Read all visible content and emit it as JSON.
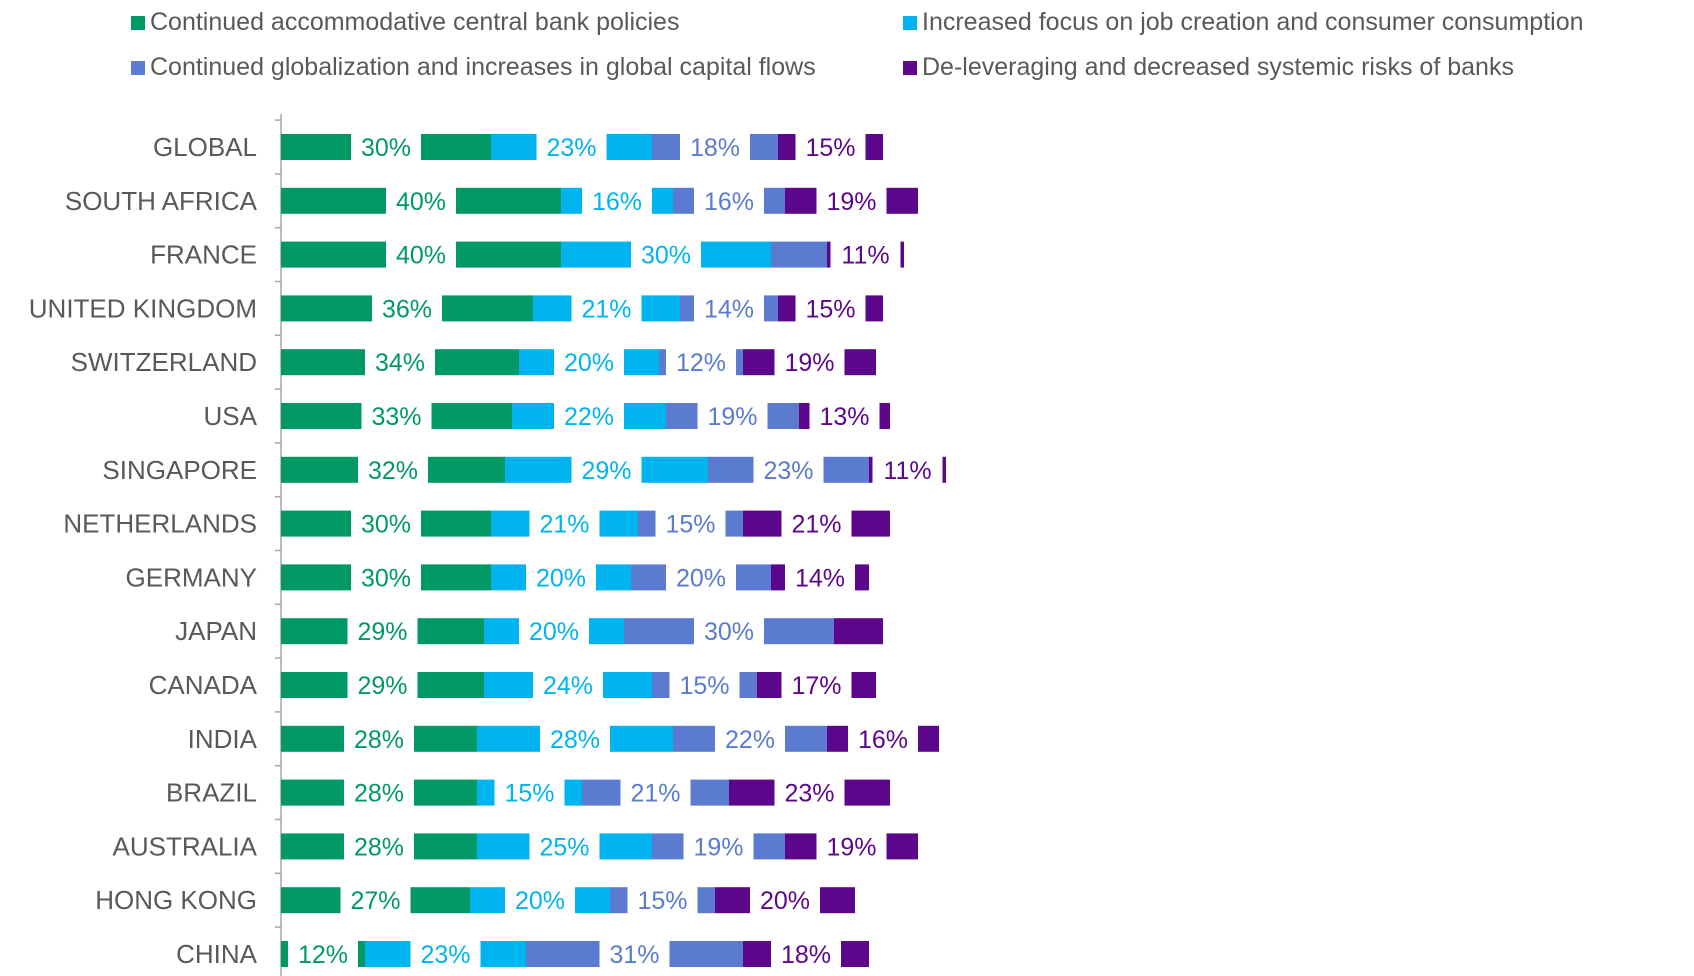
{
  "chart_data": {
    "type": "bar",
    "orientation": "horizontal",
    "stacked": true,
    "categories": [
      "GLOBAL",
      "SOUTH AFRICA",
      "FRANCE",
      "UNITED KINGDOM",
      "SWITZERLAND",
      "USA",
      "SINGAPORE",
      "NETHERLANDS",
      "GERMANY",
      "JAPAN",
      "CANADA",
      "INDIA",
      "BRAZIL",
      "AUSTRALIA",
      "HONG KONG",
      "CHINA"
    ],
    "series": [
      {
        "name": "Continued accommodative central bank policies",
        "color": "#009966",
        "values": [
          30,
          40,
          40,
          36,
          34,
          33,
          32,
          30,
          30,
          29,
          29,
          28,
          28,
          28,
          27,
          12
        ]
      },
      {
        "name": "Increased focus on job creation and consumer consumption",
        "color": "#00B4F0",
        "values": [
          23,
          16,
          30,
          21,
          20,
          22,
          29,
          21,
          20,
          20,
          24,
          28,
          15,
          25,
          20,
          23
        ]
      },
      {
        "name": "Continued globalization and increases in global capital flows",
        "color": "#5B7BD0",
        "values": [
          18,
          16,
          8,
          14,
          12,
          19,
          23,
          15,
          20,
          30,
          15,
          22,
          21,
          19,
          15,
          31
        ]
      },
      {
        "name": "De-leveraging and decreased systemic risks of banks",
        "color": "#5C068C",
        "values": [
          15,
          19,
          11,
          15,
          19,
          13,
          11,
          21,
          14,
          7,
          17,
          16,
          23,
          19,
          20,
          18
        ]
      }
    ],
    "value_format": "{v}%",
    "legend_position": "top",
    "grid": false
  }
}
